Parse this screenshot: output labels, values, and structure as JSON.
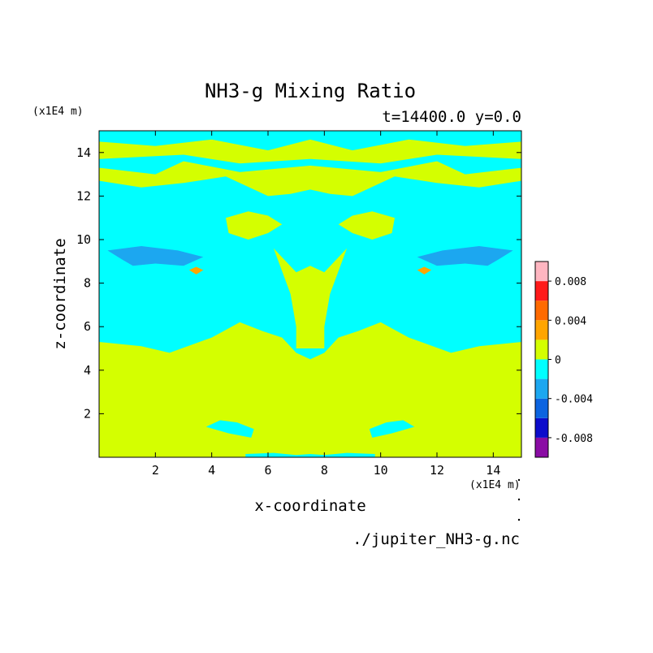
{
  "chart_data": {
    "type": "heatmap",
    "title": "NH3-g Mixing Ratio",
    "subtitle": "t=14400.0 y=0.0",
    "xlabel": "x-coordinate",
    "ylabel": "z-coordinate",
    "x_unit_label": "(x1E4 m)",
    "y_unit_label": "(x1E4 m)",
    "xlim": [
      0.0,
      15.0
    ],
    "ylim": [
      0.0,
      15.0
    ],
    "x_ticks": [
      2,
      4,
      6,
      8,
      10,
      12,
      14
    ],
    "y_ticks": [
      2,
      4,
      6,
      8,
      10,
      12,
      14
    ],
    "source_label": "./jupiter_NH3-g.nc",
    "colorbar": {
      "levels": [
        -0.01,
        -0.008,
        -0.006,
        -0.004,
        -0.002,
        0.0,
        0.002,
        0.004,
        0.006,
        0.008,
        0.01
      ],
      "colors": [
        "#8a0ca4",
        "#0c0ccb",
        "#0c64e0",
        "#1ca7f0",
        "#00ffff",
        "#d4ff00",
        "#ffa500",
        "#ff6a00",
        "#ff1a1a",
        "#ffb6c1"
      ],
      "tick_values": [
        0.008,
        0.004,
        0,
        -0.004,
        -0.008
      ],
      "tick_labels": [
        "0.008",
        "0.004",
        "0",
        "-0.004",
        "-0.008"
      ]
    },
    "background_level": "0 to 0.002",
    "regions": [
      {
        "name": "upper negative band",
        "value": -0.001,
        "points": [
          [
            0,
            14.5
          ],
          [
            2,
            14.3
          ],
          [
            4,
            14.6
          ],
          [
            6,
            14.1
          ],
          [
            7.5,
            14.6
          ],
          [
            9,
            14.1
          ],
          [
            11,
            14.6
          ],
          [
            13,
            14.3
          ],
          [
            15,
            14.5
          ],
          [
            15,
            15
          ],
          [
            0,
            15
          ]
        ]
      },
      {
        "name": "upper band 2",
        "value": -0.001,
        "points": [
          [
            0,
            13.3
          ],
          [
            2,
            13.0
          ],
          [
            3,
            13.6
          ],
          [
            5,
            13.1
          ],
          [
            7.5,
            13.4
          ],
          [
            10,
            13.1
          ],
          [
            12,
            13.6
          ],
          [
            13,
            13.0
          ],
          [
            15,
            13.3
          ],
          [
            15,
            13.7
          ],
          [
            12,
            13.9
          ],
          [
            10,
            13.5
          ],
          [
            7.5,
            13.7
          ],
          [
            5,
            13.5
          ],
          [
            3,
            13.9
          ],
          [
            0,
            13.7
          ]
        ]
      },
      {
        "name": "main negative region",
        "value": -0.001,
        "points": [
          [
            0,
            12.7
          ],
          [
            1.5,
            12.4
          ],
          [
            3,
            12.6
          ],
          [
            4.5,
            12.9
          ],
          [
            6,
            12.0
          ],
          [
            6.8,
            12.1
          ],
          [
            7.5,
            12.3
          ],
          [
            8.2,
            12.1
          ],
          [
            9,
            12.0
          ],
          [
            10.5,
            12.9
          ],
          [
            12,
            12.6
          ],
          [
            13.5,
            12.4
          ],
          [
            15,
            12.7
          ],
          [
            15,
            5.3
          ],
          [
            13.5,
            5.1
          ],
          [
            12.5,
            4.8
          ],
          [
            11,
            5.5
          ],
          [
            10,
            6.2
          ],
          [
            9.2,
            5.8
          ],
          [
            8.5,
            5.5
          ],
          [
            8,
            4.8
          ],
          [
            7.5,
            4.5
          ],
          [
            7,
            4.8
          ],
          [
            6.5,
            5.5
          ],
          [
            5.8,
            5.8
          ],
          [
            5,
            6.2
          ],
          [
            4,
            5.5
          ],
          [
            2.5,
            4.8
          ],
          [
            1.5,
            5.1
          ],
          [
            0,
            5.3
          ]
        ]
      },
      {
        "name": "lower blob left",
        "value": -0.001,
        "points": [
          [
            3.8,
            1.4
          ],
          [
            4.3,
            1.7
          ],
          [
            4.9,
            1.6
          ],
          [
            5.5,
            1.3
          ],
          [
            5.4,
            0.9
          ],
          [
            4.6,
            1.1
          ]
        ]
      },
      {
        "name": "lower blob right",
        "value": -0.001,
        "points": [
          [
            9.6,
            1.3
          ],
          [
            10.2,
            1.6
          ],
          [
            10.8,
            1.7
          ],
          [
            11.2,
            1.4
          ],
          [
            10.4,
            1.1
          ],
          [
            9.7,
            0.9
          ]
        ]
      },
      {
        "name": "bottom sliver",
        "value": -0.001,
        "points": [
          [
            5.2,
            0.15
          ],
          [
            6.2,
            0.2
          ],
          [
            7,
            0.1
          ],
          [
            7.5,
            0.15
          ],
          [
            8,
            0.1
          ],
          [
            8.8,
            0.2
          ],
          [
            9.8,
            0.15
          ],
          [
            9.8,
            0
          ],
          [
            5.2,
            0
          ]
        ]
      },
      {
        "name": "left deep pocket",
        "value": -0.003,
        "points": [
          [
            0.3,
            9.5
          ],
          [
            1.5,
            9.7
          ],
          [
            2.8,
            9.5
          ],
          [
            3.7,
            9.2
          ],
          [
            3.0,
            8.8
          ],
          [
            2.0,
            8.9
          ],
          [
            1.2,
            8.8
          ],
          [
            0.8,
            9.1
          ]
        ]
      },
      {
        "name": "right deep pocket",
        "value": -0.003,
        "points": [
          [
            14.7,
            9.5
          ],
          [
            13.5,
            9.7
          ],
          [
            12.2,
            9.5
          ],
          [
            11.3,
            9.2
          ],
          [
            12.0,
            8.8
          ],
          [
            13.0,
            8.9
          ],
          [
            13.8,
            8.8
          ],
          [
            14.2,
            9.1
          ]
        ]
      },
      {
        "name": "left positive patch",
        "value": 0.003,
        "points": [
          [
            3.2,
            8.6
          ],
          [
            3.45,
            8.75
          ],
          [
            3.7,
            8.6
          ],
          [
            3.45,
            8.4
          ]
        ]
      },
      {
        "name": "right positive patch",
        "value": 0.003,
        "points": [
          [
            11.3,
            8.6
          ],
          [
            11.55,
            8.75
          ],
          [
            11.8,
            8.6
          ],
          [
            11.55,
            8.4
          ]
        ]
      }
    ],
    "background_regions": [
      {
        "name": "mushroom cap left",
        "points": [
          [
            4.5,
            11.0
          ],
          [
            5.3,
            11.3
          ],
          [
            6.0,
            11.1
          ],
          [
            6.5,
            10.7
          ],
          [
            6.0,
            10.3
          ],
          [
            5.3,
            10.0
          ],
          [
            4.6,
            10.3
          ]
        ]
      },
      {
        "name": "mushroom cap right",
        "points": [
          [
            10.5,
            11.0
          ],
          [
            9.7,
            11.3
          ],
          [
            9.0,
            11.1
          ],
          [
            8.5,
            10.7
          ],
          [
            9.0,
            10.3
          ],
          [
            9.7,
            10.0
          ],
          [
            10.4,
            10.3
          ]
        ]
      },
      {
        "name": "central stalk",
        "points": [
          [
            6.2,
            9.6
          ],
          [
            7.0,
            8.5
          ],
          [
            7.5,
            8.8
          ],
          [
            8.0,
            8.5
          ],
          [
            8.8,
            9.6
          ],
          [
            8.2,
            7.5
          ],
          [
            8.0,
            6.0
          ],
          [
            8.0,
            5.0
          ],
          [
            7.0,
            5.0
          ],
          [
            7.0,
            6.0
          ],
          [
            6.8,
            7.5
          ]
        ]
      }
    ]
  }
}
